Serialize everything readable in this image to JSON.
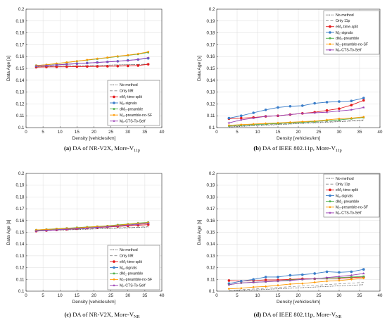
{
  "series_styles": [
    {
      "color": "#333333",
      "dash": "1.2,1.2",
      "marker": "none"
    },
    {
      "color": "#888888",
      "dash": "4,2.5",
      "marker": "none"
    },
    {
      "color": "#e41a1c",
      "dash": "",
      "marker": "circle"
    },
    {
      "color": "#3a7dc9",
      "dash": "",
      "marker": "circle"
    },
    {
      "color": "#4daf4a",
      "dash": "",
      "marker": "square"
    },
    {
      "color": "#ff9900",
      "dash": "",
      "marker": "diamond"
    },
    {
      "color": "#9b40b5",
      "dash": "",
      "marker": "star"
    }
  ],
  "chart_data": [
    {
      "type": "line",
      "caption": {
        "tag": "(a)",
        "text": "DA of NR-V2X, More-V",
        "sub": "11p"
      },
      "xlabel": "Density [vehicles/km]",
      "ylabel": "Data Age [s]",
      "xlim": [
        0,
        40
      ],
      "ylim": [
        0.1,
        0.2
      ],
      "xticks": [
        "0",
        "5",
        "10",
        "15",
        "20",
        "25",
        "30",
        "35",
        "40"
      ],
      "yticks": [
        "0.1",
        "0.11",
        "0.12",
        "0.13",
        "0.14",
        "0.15",
        "0.16",
        "0.17",
        "0.18",
        "0.19",
        "0.2"
      ],
      "grid": true,
      "legend_position": "lower-right",
      "x": [
        3,
        6,
        9,
        12,
        15,
        18,
        21,
        24,
        27,
        30,
        33,
        36
      ],
      "series": [
        {
          "name": "No-method",
          "values": [
            0.1515,
            0.1517,
            0.1519,
            0.152,
            0.1522,
            0.1524,
            0.1526,
            0.1528,
            0.153,
            0.1532,
            0.1534,
            0.1536
          ]
        },
        {
          "name": "Only NR",
          "values": [
            0.1514,
            0.1516,
            0.1518,
            0.152,
            0.1521,
            0.1523,
            0.1525,
            0.1527,
            0.1529,
            0.1531,
            0.1533,
            0.1535
          ]
        },
        {
          "name": "eM",
          "name_sub": "T",
          "name_suffix": "-time-split",
          "values": [
            0.151,
            0.1512,
            0.1513,
            0.1514,
            0.1515,
            0.1516,
            0.1517,
            0.1518,
            0.1519,
            0.1521,
            0.1524,
            0.1535
          ]
        },
        {
          "name": "M",
          "name_sub": "E",
          "name_suffix": "-signals",
          "values": [
            0.152,
            0.1525,
            0.153,
            0.1535,
            0.154,
            0.1545,
            0.155,
            0.1555,
            0.156,
            0.1568,
            0.1575,
            0.1585
          ]
        },
        {
          "name": "dM",
          "name_sub": "C",
          "name_suffix": "-preamble",
          "values": [
            0.1525,
            0.153,
            0.154,
            0.155,
            0.156,
            0.157,
            0.158,
            0.159,
            0.16,
            0.161,
            0.162,
            0.1635
          ]
        },
        {
          "name": "M",
          "name_sub": "C",
          "name_suffix": "-preamble-no-SF",
          "values": [
            0.1525,
            0.1531,
            0.1541,
            0.1551,
            0.1561,
            0.1572,
            0.1582,
            0.1592,
            0.1603,
            0.1612,
            0.1623,
            0.164
          ]
        },
        {
          "name": "M",
          "name_sub": "F",
          "name_suffix": "-CTS-To-Self",
          "values": [
            0.152,
            0.1525,
            0.153,
            0.1535,
            0.154,
            0.1545,
            0.155,
            0.1555,
            0.156,
            0.1567,
            0.1575,
            0.159
          ]
        }
      ]
    },
    {
      "type": "line",
      "caption": {
        "tag": "(b)",
        "text": "DA of IEEE 802.11p, More-V",
        "sub": "11p"
      },
      "xlabel": "Density [vehicles/km]",
      "ylabel": "Data Age [s]",
      "xlim": [
        0,
        40
      ],
      "ylim": [
        0.1,
        0.2
      ],
      "xticks": [
        "0",
        "5",
        "10",
        "15",
        "20",
        "25",
        "30",
        "35",
        "40"
      ],
      "yticks": [
        "0.1",
        "0.11",
        "0.12",
        "0.13",
        "0.14",
        "0.15",
        "0.16",
        "0.17",
        "0.18",
        "0.19",
        "0.2"
      ],
      "grid": true,
      "legend_position": "top-right",
      "x": [
        3,
        6,
        9,
        12,
        15,
        18,
        21,
        24,
        27,
        30,
        33,
        36
      ],
      "series": [
        {
          "name": "No-method",
          "values": [
            0.1005,
            0.101,
            0.1015,
            0.102,
            0.1025,
            0.103,
            0.1035,
            0.104,
            0.1045,
            0.105,
            0.1055,
            0.106
          ]
        },
        {
          "name": "Only 11p",
          "values": [
            0.101,
            0.1015,
            0.102,
            0.1025,
            0.103,
            0.1035,
            0.104,
            0.1045,
            0.105,
            0.1055,
            0.106,
            0.1065
          ]
        },
        {
          "name": "eM",
          "name_sub": "T",
          "name_suffix": "-time-split",
          "values": [
            0.1075,
            0.108,
            0.1085,
            0.1095,
            0.11,
            0.111,
            0.112,
            0.113,
            0.1145,
            0.116,
            0.119,
            0.123
          ]
        },
        {
          "name": "M",
          "name_sub": "E",
          "name_suffix": "-signals",
          "values": [
            0.108,
            0.11,
            0.1125,
            0.115,
            0.117,
            0.118,
            0.1185,
            0.1205,
            0.1215,
            0.122,
            0.1225,
            0.125
          ]
        },
        {
          "name": "dM",
          "name_sub": "C",
          "name_suffix": "-preamble",
          "values": [
            0.1015,
            0.102,
            0.1025,
            0.103,
            0.1035,
            0.104,
            0.1045,
            0.105,
            0.106,
            0.1065,
            0.1075,
            0.1085
          ]
        },
        {
          "name": "M",
          "name_sub": "C",
          "name_suffix": "-preamble-no-SF",
          "values": [
            0.102,
            0.1025,
            0.103,
            0.1035,
            0.104,
            0.1045,
            0.105,
            0.1055,
            0.1065,
            0.1075,
            0.108,
            0.109
          ]
        },
        {
          "name": "M",
          "name_sub": "F",
          "name_suffix": "-CTS-To-Self",
          "values": [
            0.104,
            0.1065,
            0.108,
            0.1095,
            0.11,
            0.111,
            0.112,
            0.1125,
            0.113,
            0.114,
            0.115,
            0.117
          ]
        }
      ]
    },
    {
      "type": "line",
      "caption": {
        "tag": "(c)",
        "text": "DA of NR-V2X, More-V",
        "sub": "NR"
      },
      "xlabel": "Density [vehicles/km]",
      "ylabel": "Data Age [s]",
      "xlim": [
        0,
        40
      ],
      "ylim": [
        0.1,
        0.2
      ],
      "xticks": [
        "0",
        "5",
        "10",
        "15",
        "20",
        "25",
        "30",
        "35",
        "40"
      ],
      "yticks": [
        "0.1",
        "0.11",
        "0.12",
        "0.13",
        "0.14",
        "0.15",
        "0.16",
        "0.17",
        "0.18",
        "0.19",
        "0.2"
      ],
      "grid": true,
      "legend_position": "lower-right",
      "x": [
        3,
        6,
        9,
        12,
        15,
        18,
        21,
        24,
        27,
        30,
        33,
        36
      ],
      "series": [
        {
          "name": "No-method",
          "values": [
            0.1512,
            0.1515,
            0.1518,
            0.152,
            0.1523,
            0.1526,
            0.1529,
            0.1532,
            0.1535,
            0.1538,
            0.1541,
            0.1545
          ]
        },
        {
          "name": "Only NR",
          "values": [
            0.1514,
            0.1517,
            0.152,
            0.1523,
            0.1526,
            0.1529,
            0.1532,
            0.1535,
            0.1538,
            0.1541,
            0.1544,
            0.1548
          ]
        },
        {
          "name": "eM",
          "name_sub": "T",
          "name_suffix": "-time-split",
          "values": [
            0.151,
            0.1515,
            0.152,
            0.1525,
            0.153,
            0.1535,
            0.154,
            0.1545,
            0.155,
            0.1555,
            0.156,
            0.1565
          ]
        },
        {
          "name": "M",
          "name_sub": "E",
          "name_suffix": "-signals",
          "values": [
            0.1515,
            0.152,
            0.1525,
            0.153,
            0.1535,
            0.154,
            0.1545,
            0.155,
            0.1558,
            0.1565,
            0.1573,
            0.158
          ]
        },
        {
          "name": "dM",
          "name_sub": "C",
          "name_suffix": "-preamble",
          "values": [
            0.152,
            0.1525,
            0.153,
            0.1535,
            0.154,
            0.1545,
            0.155,
            0.1555,
            0.1563,
            0.157,
            0.1578,
            0.1585
          ]
        },
        {
          "name": "M",
          "name_sub": "C",
          "name_suffix": "-preamble-no-SF",
          "values": [
            0.152,
            0.1524,
            0.1528,
            0.1533,
            0.1538,
            0.1543,
            0.1548,
            0.1553,
            0.156,
            0.1567,
            0.1575,
            0.1582
          ]
        },
        {
          "name": "M",
          "name_sub": "F",
          "name_suffix": "-CTS-To-Self",
          "values": [
            0.151,
            0.1515,
            0.152,
            0.1525,
            0.153,
            0.1535,
            0.1541,
            0.1547,
            0.1553,
            0.156,
            0.1567,
            0.1575
          ]
        }
      ]
    },
    {
      "type": "line",
      "caption": {
        "tag": "(d)",
        "text": "DA of IEEE 802.11p, More-V",
        "sub": "NR"
      },
      "xlabel": "Density [vehicles/km]",
      "ylabel": "Data Age [s]",
      "xlim": [
        0,
        40
      ],
      "ylim": [
        0.1,
        0.2
      ],
      "xticks": [
        "0",
        "5",
        "10",
        "15",
        "20",
        "25",
        "30",
        "35",
        "40"
      ],
      "yticks": [
        "0.1",
        "0.11",
        "0.12",
        "0.13",
        "0.14",
        "0.15",
        "0.16",
        "0.17",
        "0.18",
        "0.19",
        "0.2"
      ],
      "grid": true,
      "legend_position": "top-right",
      "x": [
        3,
        6,
        9,
        12,
        15,
        18,
        21,
        24,
        27,
        30,
        33,
        36
      ],
      "series": [
        {
          "name": "No-method",
          "values": [
            0.1,
            0.1005,
            0.101,
            0.1015,
            0.102,
            0.1025,
            0.103,
            0.1035,
            0.104,
            0.1045,
            0.105,
            0.1055
          ]
        },
        {
          "name": "Only 11p",
          "values": [
            0.1005,
            0.1012,
            0.1018,
            0.1025,
            0.1031,
            0.1038,
            0.1044,
            0.105,
            0.1056,
            0.1062,
            0.1068,
            0.1075
          ]
        },
        {
          "name": "eM",
          "name_sub": "T",
          "name_suffix": "-time-split",
          "values": [
            0.109,
            0.1085,
            0.109,
            0.1095,
            0.1095,
            0.11,
            0.1105,
            0.1105,
            0.111,
            0.111,
            0.1115,
            0.112
          ]
        },
        {
          "name": "M",
          "name_sub": "E",
          "name_suffix": "-signals",
          "values": [
            0.1065,
            0.1085,
            0.11,
            0.112,
            0.112,
            0.1135,
            0.114,
            0.115,
            0.1165,
            0.116,
            0.1165,
            0.1185
          ]
        },
        {
          "name": "dM",
          "name_sub": "C",
          "name_suffix": "-preamble",
          "values": [
            0.1055,
            0.107,
            0.1075,
            0.108,
            0.1085,
            0.1095,
            0.11,
            0.1105,
            0.111,
            0.1115,
            0.112,
            0.1125
          ]
        },
        {
          "name": "M",
          "name_sub": "C",
          "name_suffix": "-preamble-no-SF",
          "values": [
            0.102,
            0.1025,
            0.1035,
            0.104,
            0.105,
            0.106,
            0.1065,
            0.1075,
            0.1085,
            0.109,
            0.11,
            0.111
          ]
        },
        {
          "name": "M",
          "name_sub": "F",
          "name_suffix": "-CTS-To-Self",
          "values": [
            0.1055,
            0.107,
            0.1075,
            0.108,
            0.1085,
            0.109,
            0.11,
            0.1105,
            0.1115,
            0.1125,
            0.1135,
            0.115
          ]
        }
      ]
    }
  ]
}
